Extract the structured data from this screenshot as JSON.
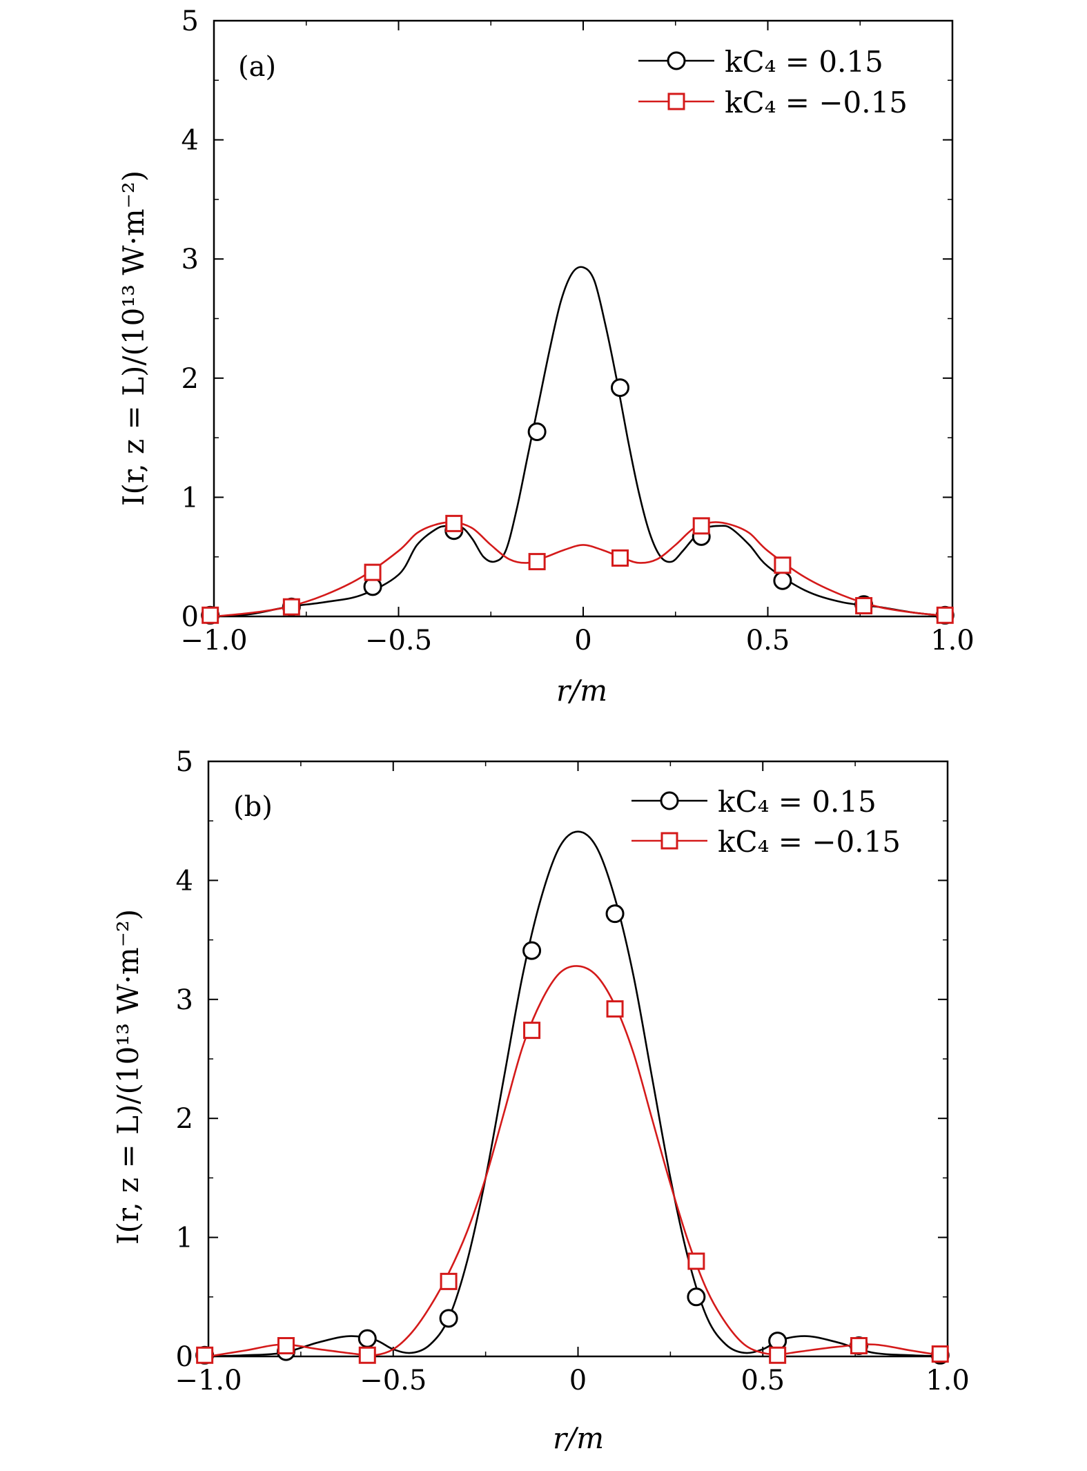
{
  "chart_data": [
    {
      "type": "line",
      "panel_label": "(a)",
      "xlabel": "r/m",
      "ylabel": "I(r, z = L)/(10¹³ W·m⁻²)",
      "xlim": [
        -1.0,
        1.0
      ],
      "ylim": [
        0,
        5
      ],
      "xticks": [
        -1.0,
        -0.5,
        0,
        0.5,
        1.0
      ],
      "xtick_labels": [
        "−1.0",
        "−0.5",
        "0",
        "0.5",
        "1.0"
      ],
      "yticks": [
        0,
        1,
        2,
        3,
        4,
        5
      ],
      "ytick_labels": [
        "0",
        "1",
        "2",
        "3",
        "4",
        "5"
      ],
      "legend_position": "top-right",
      "series": [
        {
          "name": "kC₄ = 0.15",
          "color": "#000000",
          "marker": "circle",
          "curve_x": [
            -1.0,
            -0.9,
            -0.8,
            -0.7,
            -0.6,
            -0.5,
            -0.45,
            -0.4,
            -0.37,
            -0.33,
            -0.3,
            -0.27,
            -0.24,
            -0.21,
            -0.18,
            -0.15,
            -0.12,
            -0.09,
            -0.06,
            -0.03,
            0.0,
            0.03,
            0.06,
            0.09,
            0.12,
            0.15,
            0.18,
            0.21,
            0.24,
            0.27,
            0.3,
            0.33,
            0.37,
            0.4,
            0.45,
            0.5,
            0.6,
            0.7,
            0.8,
            0.9,
            1.0
          ],
          "curve_y": [
            0.0,
            0.02,
            0.08,
            0.12,
            0.18,
            0.35,
            0.6,
            0.73,
            0.76,
            0.75,
            0.65,
            0.5,
            0.46,
            0.55,
            0.9,
            1.35,
            1.8,
            2.25,
            2.65,
            2.88,
            2.93,
            2.82,
            2.45,
            2.0,
            1.5,
            1.05,
            0.7,
            0.5,
            0.46,
            0.55,
            0.66,
            0.74,
            0.76,
            0.74,
            0.6,
            0.42,
            0.22,
            0.12,
            0.08,
            0.03,
            0.0
          ],
          "marker_x": [
            -1.01,
            -0.79,
            -0.57,
            -0.35,
            -0.125,
            0.1,
            0.32,
            0.54,
            0.76,
            0.98
          ],
          "marker_y": [
            0.01,
            0.08,
            0.25,
            0.72,
            1.55,
            1.92,
            0.67,
            0.3,
            0.1,
            0.01
          ]
        },
        {
          "name": "kC₄ = −0.15",
          "color": "#d41a1a",
          "marker": "square",
          "curve_x": [
            -1.0,
            -0.9,
            -0.8,
            -0.7,
            -0.6,
            -0.5,
            -0.45,
            -0.4,
            -0.35,
            -0.3,
            -0.25,
            -0.2,
            -0.15,
            -0.1,
            -0.05,
            0.0,
            0.05,
            0.1,
            0.15,
            0.2,
            0.25,
            0.3,
            0.35,
            0.4,
            0.45,
            0.5,
            0.6,
            0.7,
            0.8,
            0.9,
            1.0
          ],
          "curve_y": [
            0.0,
            0.03,
            0.08,
            0.18,
            0.33,
            0.55,
            0.7,
            0.77,
            0.79,
            0.74,
            0.6,
            0.48,
            0.45,
            0.5,
            0.56,
            0.6,
            0.56,
            0.5,
            0.45,
            0.48,
            0.6,
            0.74,
            0.79,
            0.77,
            0.7,
            0.55,
            0.33,
            0.18,
            0.08,
            0.03,
            0.0
          ],
          "marker_x": [
            -1.01,
            -0.79,
            -0.57,
            -0.35,
            -0.125,
            0.1,
            0.32,
            0.54,
            0.76,
            0.98
          ],
          "marker_y": [
            0.01,
            0.08,
            0.37,
            0.78,
            0.46,
            0.49,
            0.76,
            0.43,
            0.09,
            0.01
          ]
        }
      ]
    },
    {
      "type": "line",
      "panel_label": "(b)",
      "xlabel": "r/m",
      "ylabel": "I(r, z = L)/(10¹³ W·m⁻²)",
      "xlim": [
        -1.0,
        1.0
      ],
      "ylim": [
        0,
        5
      ],
      "xticks": [
        -1.0,
        -0.5,
        0,
        0.5,
        1.0
      ],
      "xtick_labels": [
        "−1.0",
        "−0.5",
        "0",
        "0.5",
        "1.0"
      ],
      "yticks": [
        0,
        1,
        2,
        3,
        4,
        5
      ],
      "ytick_labels": [
        "0",
        "1",
        "2",
        "3",
        "4",
        "5"
      ],
      "legend_position": "top-right",
      "series": [
        {
          "name": "kC₄ = 0.15",
          "color": "#000000",
          "marker": "circle",
          "curve_x": [
            -1.0,
            -0.9,
            -0.8,
            -0.7,
            -0.62,
            -0.55,
            -0.5,
            -0.45,
            -0.4,
            -0.35,
            -0.3,
            -0.25,
            -0.2,
            -0.15,
            -0.1,
            -0.05,
            0.0,
            0.05,
            0.1,
            0.15,
            0.2,
            0.25,
            0.3,
            0.35,
            0.4,
            0.45,
            0.5,
            0.55,
            0.62,
            0.7,
            0.8,
            0.9,
            1.0
          ],
          "curve_y": [
            0.0,
            0.01,
            0.03,
            0.12,
            0.17,
            0.14,
            0.06,
            0.03,
            0.1,
            0.32,
            0.8,
            1.5,
            2.35,
            3.2,
            3.85,
            4.28,
            4.41,
            4.28,
            3.85,
            3.2,
            2.35,
            1.5,
            0.8,
            0.32,
            0.1,
            0.03,
            0.06,
            0.14,
            0.17,
            0.12,
            0.03,
            0.01,
            0.0
          ],
          "marker_x": [
            -1.01,
            -0.79,
            -0.57,
            -0.35,
            -0.125,
            0.1,
            0.32,
            0.54,
            0.76,
            0.98
          ],
          "marker_y": [
            0.01,
            0.04,
            0.15,
            0.32,
            3.41,
            3.72,
            0.5,
            0.13,
            0.09,
            0.01
          ]
        },
        {
          "name": "kC₄ = −0.15",
          "color": "#d41a1a",
          "marker": "square",
          "curve_x": [
            -1.0,
            -0.9,
            -0.8,
            -0.7,
            -0.6,
            -0.55,
            -0.5,
            -0.45,
            -0.4,
            -0.35,
            -0.3,
            -0.25,
            -0.2,
            -0.15,
            -0.1,
            -0.05,
            0.0,
            0.05,
            0.1,
            0.15,
            0.2,
            0.25,
            0.3,
            0.35,
            0.4,
            0.45,
            0.5,
            0.55,
            0.6,
            0.7,
            0.8,
            0.9,
            1.0
          ],
          "curve_y": [
            0.0,
            0.05,
            0.1,
            0.06,
            0.02,
            0.01,
            0.06,
            0.2,
            0.42,
            0.7,
            1.05,
            1.5,
            2.05,
            2.6,
            2.98,
            3.22,
            3.28,
            3.2,
            2.95,
            2.55,
            2.0,
            1.45,
            0.95,
            0.55,
            0.28,
            0.1,
            0.03,
            0.02,
            0.04,
            0.08,
            0.1,
            0.05,
            0.0
          ],
          "marker_x": [
            -1.01,
            -0.79,
            -0.57,
            -0.35,
            -0.125,
            0.1,
            0.32,
            0.54,
            0.76,
            0.98
          ],
          "marker_y": [
            0.01,
            0.09,
            0.01,
            0.63,
            2.74,
            2.92,
            0.8,
            0.01,
            0.09,
            0.02
          ]
        }
      ]
    }
  ]
}
